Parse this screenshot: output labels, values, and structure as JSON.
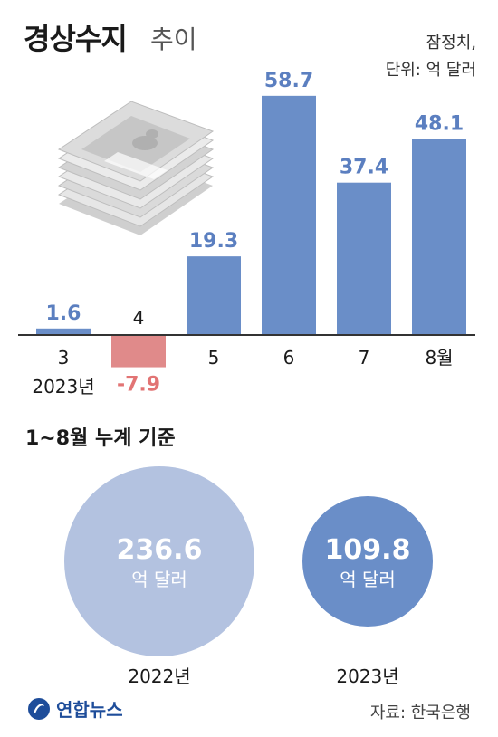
{
  "title": {
    "main": "경상수지",
    "sub": "추이"
  },
  "note": {
    "line1": "잠정치,",
    "line2": "단위: 억 달러"
  },
  "chart_data": {
    "type": "bar",
    "categories": [
      "3",
      "4",
      "5",
      "6",
      "7",
      "8월"
    ],
    "values": [
      1.6,
      -7.9,
      19.3,
      58.7,
      37.4,
      48.1
    ],
    "value_labels": [
      "1.6",
      "-7.9",
      "19.3",
      "58.7",
      "37.4",
      "48.1"
    ],
    "year_label": "2023년",
    "ylim": [
      -10,
      65
    ],
    "colors": {
      "positive": "#6a8ec8",
      "negative": "#e08a8a",
      "label_positive": "#5b7fc0",
      "label_negative": "#e27474",
      "axis": "#333333"
    }
  },
  "cumulative": {
    "title": "1~8월 누계 기준",
    "items": [
      {
        "value": "236.6",
        "unit": "억 달러",
        "year": "2022년",
        "color": "#b3c2e0"
      },
      {
        "value": "109.8",
        "unit": "억 달러",
        "year": "2023년",
        "color": "#6a8ec8"
      }
    ]
  },
  "footer": {
    "logo": "연합뉴스",
    "source": "자료: 한국은행"
  },
  "icons": {
    "money": "money-stack-icon",
    "logo": "yonhap-logo-icon"
  }
}
